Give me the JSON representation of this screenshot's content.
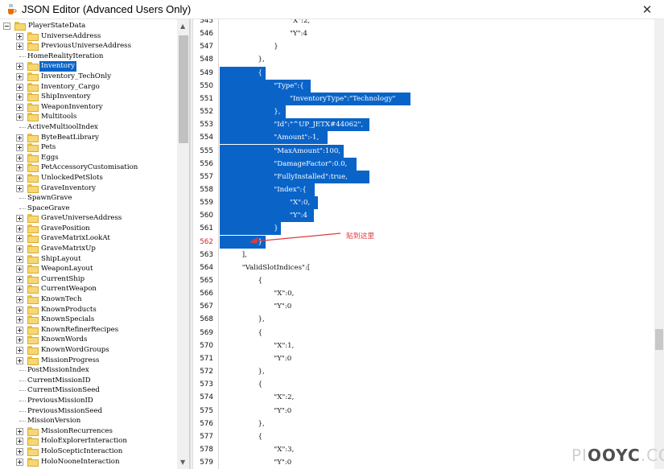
{
  "window": {
    "title": "JSON Editor (Advanced Users Only)",
    "close_glyph": "✕",
    "icon": "java-cup-icon"
  },
  "tree": {
    "items": [
      {
        "label": "PlayerStateData",
        "expander": "minus",
        "folder": true,
        "level": 0
      },
      {
        "label": "UniverseAddress",
        "expander": "plus",
        "folder": true,
        "level": 1
      },
      {
        "label": "PreviousUniverseAddress",
        "expander": "plus",
        "folder": true,
        "level": 1
      },
      {
        "label": "HomeRealityIteration",
        "expander": "none",
        "folder": false,
        "level": 1
      },
      {
        "label": "Inventory",
        "expander": "plus",
        "folder": true,
        "level": 1,
        "selected": true
      },
      {
        "label": "Inventory_TechOnly",
        "expander": "plus",
        "folder": true,
        "level": 1
      },
      {
        "label": "Inventory_Cargo",
        "expander": "plus",
        "folder": true,
        "level": 1
      },
      {
        "label": "ShipInventory",
        "expander": "plus",
        "folder": true,
        "level": 1
      },
      {
        "label": "WeaponInventory",
        "expander": "plus",
        "folder": true,
        "level": 1
      },
      {
        "label": "Multitools",
        "expander": "plus",
        "folder": true,
        "level": 1
      },
      {
        "label": "ActiveMultioolIndex",
        "expander": "none",
        "folder": false,
        "level": 1
      },
      {
        "label": "ByteBeatLibrary",
        "expander": "plus",
        "folder": true,
        "level": 1
      },
      {
        "label": "Pets",
        "expander": "plus",
        "folder": true,
        "level": 1
      },
      {
        "label": "Eggs",
        "expander": "plus",
        "folder": true,
        "level": 1
      },
      {
        "label": "PetAccessoryCustomisation",
        "expander": "plus",
        "folder": true,
        "level": 1
      },
      {
        "label": "UnlockedPetSlots",
        "expander": "plus",
        "folder": true,
        "level": 1
      },
      {
        "label": "GraveInventory",
        "expander": "plus",
        "folder": true,
        "level": 1
      },
      {
        "label": "SpawnGrave",
        "expander": "none",
        "folder": false,
        "level": 1
      },
      {
        "label": "SpaceGrave",
        "expander": "none",
        "folder": false,
        "level": 1
      },
      {
        "label": "GraveUniverseAddress",
        "expander": "plus",
        "folder": true,
        "level": 1
      },
      {
        "label": "GravePosition",
        "expander": "plus",
        "folder": true,
        "level": 1
      },
      {
        "label": "GraveMatrixLookAt",
        "expander": "plus",
        "folder": true,
        "level": 1
      },
      {
        "label": "GraveMatrixUp",
        "expander": "plus",
        "folder": true,
        "level": 1
      },
      {
        "label": "ShipLayout",
        "expander": "plus",
        "folder": true,
        "level": 1
      },
      {
        "label": "WeaponLayout",
        "expander": "plus",
        "folder": true,
        "level": 1
      },
      {
        "label": "CurrentShip",
        "expander": "plus",
        "folder": true,
        "level": 1
      },
      {
        "label": "CurrentWeapon",
        "expander": "plus",
        "folder": true,
        "level": 1
      },
      {
        "label": "KnownTech",
        "expander": "plus",
        "folder": true,
        "level": 1
      },
      {
        "label": "KnownProducts",
        "expander": "plus",
        "folder": true,
        "level": 1
      },
      {
        "label": "KnownSpecials",
        "expander": "plus",
        "folder": true,
        "level": 1
      },
      {
        "label": "KnownRefinerRecipes",
        "expander": "plus",
        "folder": true,
        "level": 1
      },
      {
        "label": "KnownWords",
        "expander": "plus",
        "folder": true,
        "level": 1
      },
      {
        "label": "KnownWordGroups",
        "expander": "plus",
        "folder": true,
        "level": 1
      },
      {
        "label": "MissionProgress",
        "expander": "plus",
        "folder": true,
        "level": 1
      },
      {
        "label": "PostMissionIndex",
        "expander": "none",
        "folder": false,
        "level": 1
      },
      {
        "label": "CurrentMissionID",
        "expander": "none",
        "folder": false,
        "level": 1
      },
      {
        "label": "CurrentMissionSeed",
        "expander": "none",
        "folder": false,
        "level": 1
      },
      {
        "label": "PreviousMissionID",
        "expander": "none",
        "folder": false,
        "level": 1
      },
      {
        "label": "PreviousMissionSeed",
        "expander": "none",
        "folder": false,
        "level": 1
      },
      {
        "label": "MissionVersion",
        "expander": "none",
        "folder": false,
        "level": 1
      },
      {
        "label": "MissionRecurrences",
        "expander": "plus",
        "folder": true,
        "level": 1
      },
      {
        "label": "HoloExplorerInteraction",
        "expander": "plus",
        "folder": true,
        "level": 1
      },
      {
        "label": "HoloScepticInteraction",
        "expander": "plus",
        "folder": true,
        "level": 1
      },
      {
        "label": "HoloNooneInteraction",
        "expander": "plus",
        "folder": true,
        "level": 1
      }
    ]
  },
  "editor": {
    "lines": [
      {
        "n": "545",
        "indent": 8,
        "text": "\"X\":2,"
      },
      {
        "n": "546",
        "indent": 8,
        "text": "\"Y\":4"
      },
      {
        "n": "547",
        "indent": 6,
        "text": "}"
      },
      {
        "n": "548",
        "indent": 4,
        "text": "},"
      },
      {
        "n": "549",
        "indent": 4,
        "text": "{",
        "selected": true
      },
      {
        "n": "550",
        "indent": 6,
        "text": "\"Type\":{",
        "selected": true
      },
      {
        "n": "551",
        "indent": 8,
        "text": "\"InventoryType\":\"Technology\"",
        "selected": true
      },
      {
        "n": "552",
        "indent": 6,
        "text": "},",
        "selected": true
      },
      {
        "n": "553",
        "indent": 6,
        "text": "\"Id\":\"^UP_JETX#44062\",",
        "selected": true
      },
      {
        "n": "554",
        "indent": 6,
        "text": "\"Amount\":-1,",
        "selected": true
      },
      {
        "n": "555",
        "indent": 6,
        "text": "\"MaxAmount\":100,",
        "selected": true
      },
      {
        "n": "556",
        "indent": 6,
        "text": "\"DamageFactor\":0.0,",
        "selected": true
      },
      {
        "n": "557",
        "indent": 6,
        "text": "\"FullyInstalled\":true,",
        "selected": true
      },
      {
        "n": "558",
        "indent": 6,
        "text": "\"Index\":{",
        "selected": true
      },
      {
        "n": "559",
        "indent": 8,
        "text": "\"X\":0,",
        "selected": true
      },
      {
        "n": "560",
        "indent": 8,
        "text": "\"Y\":4",
        "selected": true
      },
      {
        "n": "561",
        "indent": 6,
        "text": "}",
        "selected": true
      },
      {
        "n": "562",
        "indent": 4,
        "text": "}",
        "selected": true,
        "red_number": true
      },
      {
        "n": "563",
        "indent": 2,
        "text": "],"
      },
      {
        "n": "564",
        "indent": 2,
        "text": "\"ValidSlotIndices\":["
      },
      {
        "n": "565",
        "indent": 4,
        "text": "{"
      },
      {
        "n": "566",
        "indent": 6,
        "text": "\"X\":0,"
      },
      {
        "n": "567",
        "indent": 6,
        "text": "\"Y\":0"
      },
      {
        "n": "568",
        "indent": 4,
        "text": "},"
      },
      {
        "n": "569",
        "indent": 4,
        "text": "{"
      },
      {
        "n": "570",
        "indent": 6,
        "text": "\"X\":1,"
      },
      {
        "n": "571",
        "indent": 6,
        "text": "\"Y\":0"
      },
      {
        "n": "572",
        "indent": 4,
        "text": "},"
      },
      {
        "n": "573",
        "indent": 4,
        "text": "{"
      },
      {
        "n": "574",
        "indent": 6,
        "text": "\"X\":2,"
      },
      {
        "n": "575",
        "indent": 6,
        "text": "\"Y\":0"
      },
      {
        "n": "576",
        "indent": 4,
        "text": "},"
      },
      {
        "n": "577",
        "indent": 4,
        "text": "{"
      },
      {
        "n": "578",
        "indent": 6,
        "text": "\"X\":3,"
      },
      {
        "n": "579",
        "indent": 6,
        "text": "\"Y\":0"
      }
    ],
    "annotation": {
      "text": "贴到这里",
      "color": "#e03a3a"
    },
    "selection_color": "#0a64c8"
  },
  "watermark": {
    "left": "PI",
    "mid": "OOYC",
    "right": ".CC"
  }
}
